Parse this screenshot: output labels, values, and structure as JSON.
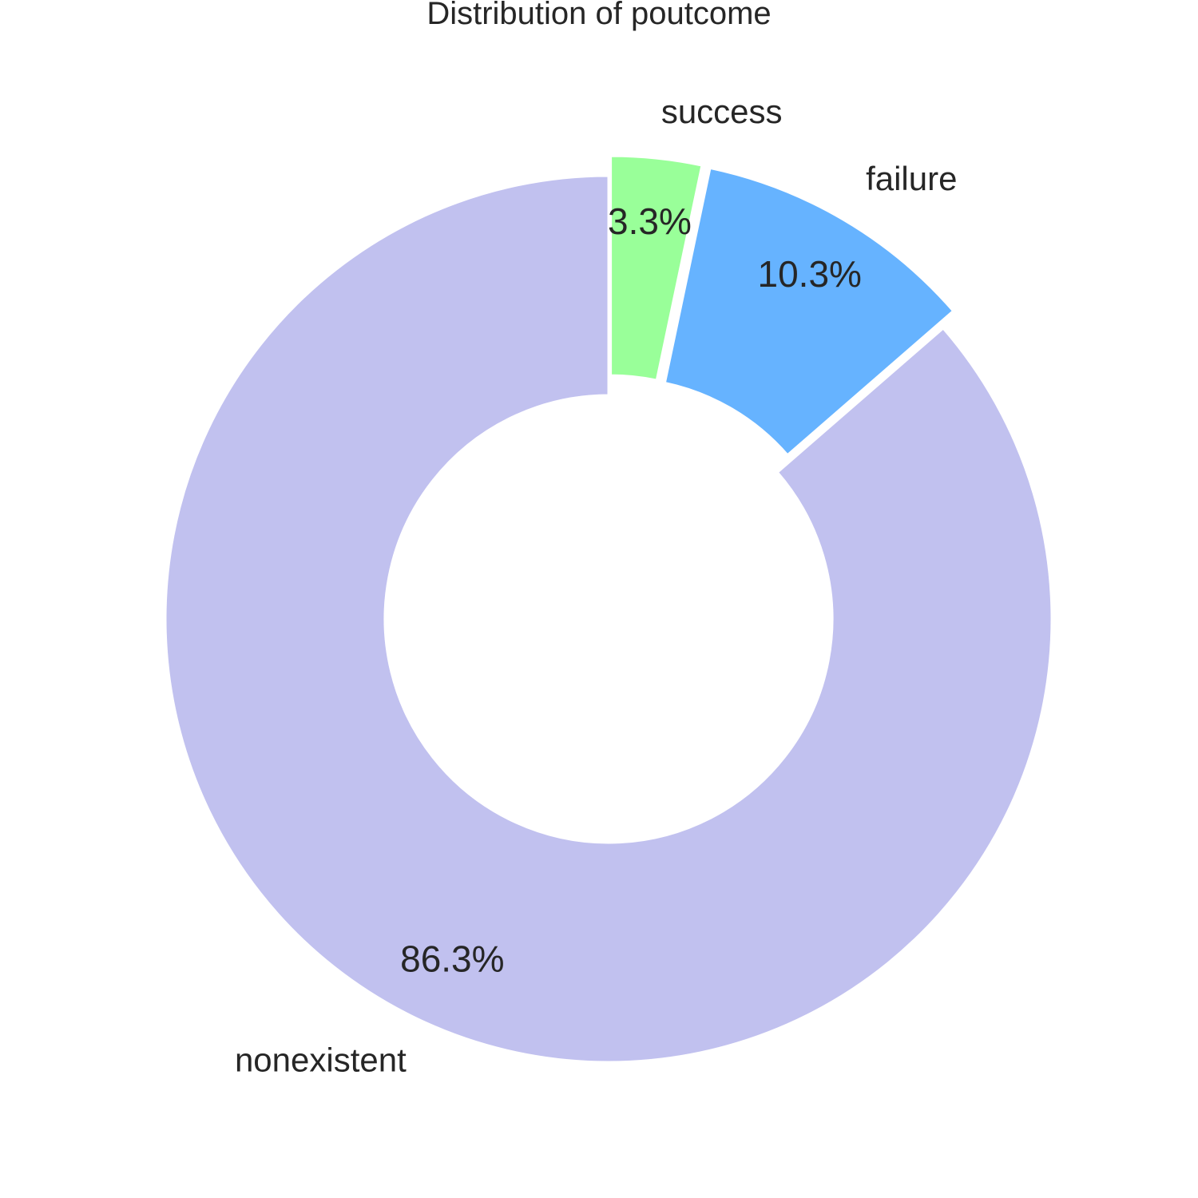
{
  "chart_data": {
    "type": "pie",
    "donut": true,
    "title": "Distribution of poutcome",
    "slices": [
      {
        "label": "nonexistent",
        "value": 86.3,
        "pct_label": "86.3%",
        "color": "#c1c1ef"
      },
      {
        "label": "failure",
        "value": 10.3,
        "pct_label": "10.3%",
        "color": "#66b3ff"
      },
      {
        "label": "success",
        "value": 3.3,
        "pct_label": "3.3%",
        "color": "#99ff99"
      }
    ],
    "legend": "none"
  }
}
